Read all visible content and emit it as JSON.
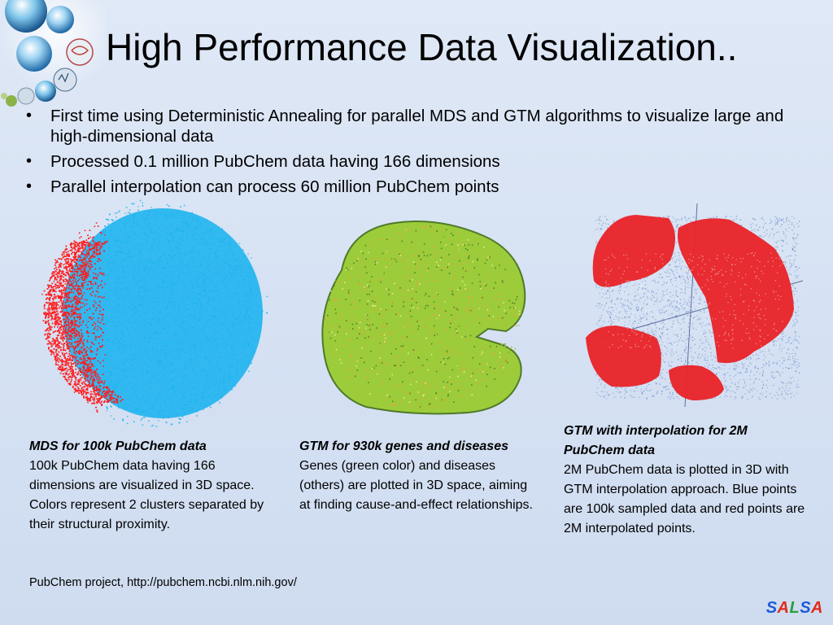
{
  "slide": {
    "title": "High Performance Data Visualization..",
    "bullets": [
      "First time using Deterministic Annealing for parallel MDS and GTM algorithms to visualize large and high-dimensional data",
      "Processed 0.1 million PubChem data having 166 dimensions",
      "Parallel interpolation can process 60 million PubChem points"
    ],
    "bullet_glyph": "•"
  },
  "panels": [
    {
      "caption_title": "MDS for 100k PubChem data",
      "caption_body": "100k PubChem data having 166 dimensions are visualized in 3D space. Colors represent 2 clusters separated by their structural proximity."
    },
    {
      "caption_title": "GTM for 930k genes and diseases",
      "caption_body": "Genes (green color) and diseases (others) are plotted in 3D space, aiming at finding  cause-and-effect relationships."
    },
    {
      "caption_title": "GTM with interpolation for 2M PubChem data",
      "caption_body": "2M PubChem data is plotted in 3D with GTM interpolation approach. Blue points are 100k sampled data and red points are 2M interpolated points."
    }
  ],
  "footer": {
    "source": "PubChem project, http://pubchem.ncbi.nlm.nih.gov/",
    "brand_letters": [
      "S",
      "A",
      "L",
      "S",
      "A"
    ]
  },
  "colors": {
    "mds_red": "#ff1a1a",
    "mds_blue": "#1fb4f0",
    "gtm_green": "#9ccc3a",
    "gtm_dark": "#4f7a2a",
    "gtm_orange": "#e8a23a",
    "interp_red": "#e8262b",
    "interp_blue": "#5d7fc2",
    "brand": [
      "#1f5bd8",
      "#e22b1c",
      "#2a9d3a",
      "#1f5bd8",
      "#e22b1c"
    ]
  },
  "icons": {
    "logo": "globe-cluster-icon"
  }
}
